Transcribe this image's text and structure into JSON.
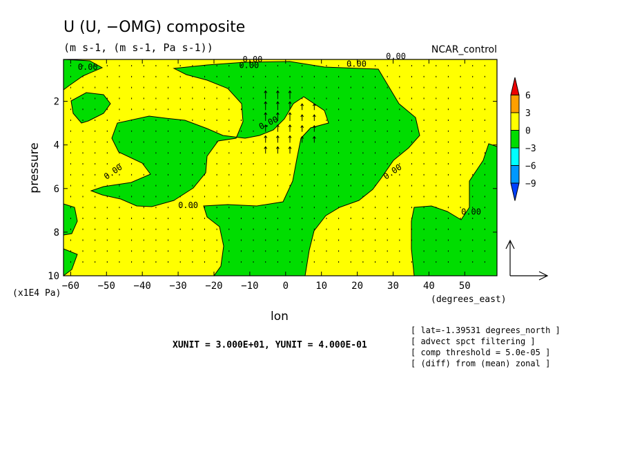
{
  "chart_data": {
    "type": "heatmap",
    "title": "U (U, −OMG) composite",
    "subtitle": "(m s-1, (m s-1, Pa s-1))",
    "experiment": "NCAR_control",
    "xlabel": "lon",
    "ylabel": "pressure",
    "x_unit_label": "(degrees_east)",
    "y_unit_label": "(x1E4 Pa)",
    "x_ticks": [
      -60,
      -50,
      -40,
      -30,
      -20,
      -10,
      0,
      10,
      20,
      30,
      40,
      50
    ],
    "y_ticks": [
      2,
      4,
      6,
      8,
      10
    ],
    "xlim": [
      -62,
      59
    ],
    "ylim": [
      10,
      0.08
    ],
    "contour_label": "0.00",
    "colorbar": {
      "levels": [
        "6",
        "3",
        "0",
        "−3",
        "−6",
        "−9"
      ],
      "colors": [
        "#ee0000",
        "#ff9f00",
        "#ffff00",
        "#00dd00",
        "#00ffff",
        "#0098ff",
        "#0040ff"
      ]
    },
    "scale_text": "XUNIT = 3.000E+01, YUNIT = 4.000E-01",
    "info_lines": [
      "[ lat=-1.39531 degrees_north ]",
      "[ advect spct filtering ]",
      "[ comp threshold = 5.0e-05 ]",
      "[ (diff) from (mean) zonal ]"
    ],
    "positive_color": "#ffff00",
    "negative_color": "#00dd00"
  }
}
